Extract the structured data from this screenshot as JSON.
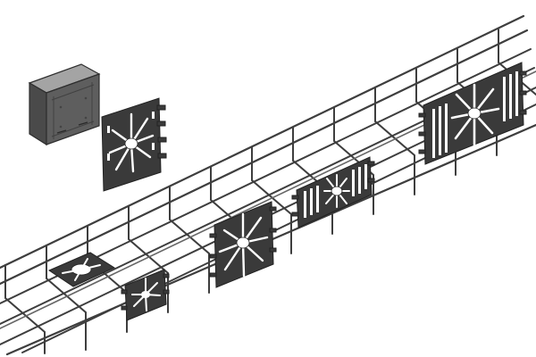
{
  "scene": {
    "subject": "wire-mesh-cable-tray-with-mounting-plates-and-junction-box",
    "colors": {
      "background": "#ffffff",
      "wire": "#3e3e3e",
      "wire_light": "#777777",
      "plate": "#3a3a3a",
      "plate_edge": "#222222",
      "hole": "#ffffff",
      "box_top": "#9a9a9a",
      "box_front": "#5c5c5c",
      "box_side": "#4a4a4a"
    },
    "objects": [
      {
        "name": "junction-box",
        "kind": "box"
      },
      {
        "name": "mounting-plate-detached",
        "kind": "plate"
      },
      {
        "name": "wire-mesh-cable-tray",
        "kind": "tray"
      },
      {
        "name": "mounting-plate-small-front",
        "kind": "plate"
      },
      {
        "name": "mounting-plate-floor",
        "kind": "plate"
      },
      {
        "name": "mounting-plate-large-middle",
        "kind": "plate"
      },
      {
        "name": "mounting-plate-wide-middle",
        "kind": "plate"
      },
      {
        "name": "mounting-plate-large-rear",
        "kind": "plate"
      }
    ]
  }
}
